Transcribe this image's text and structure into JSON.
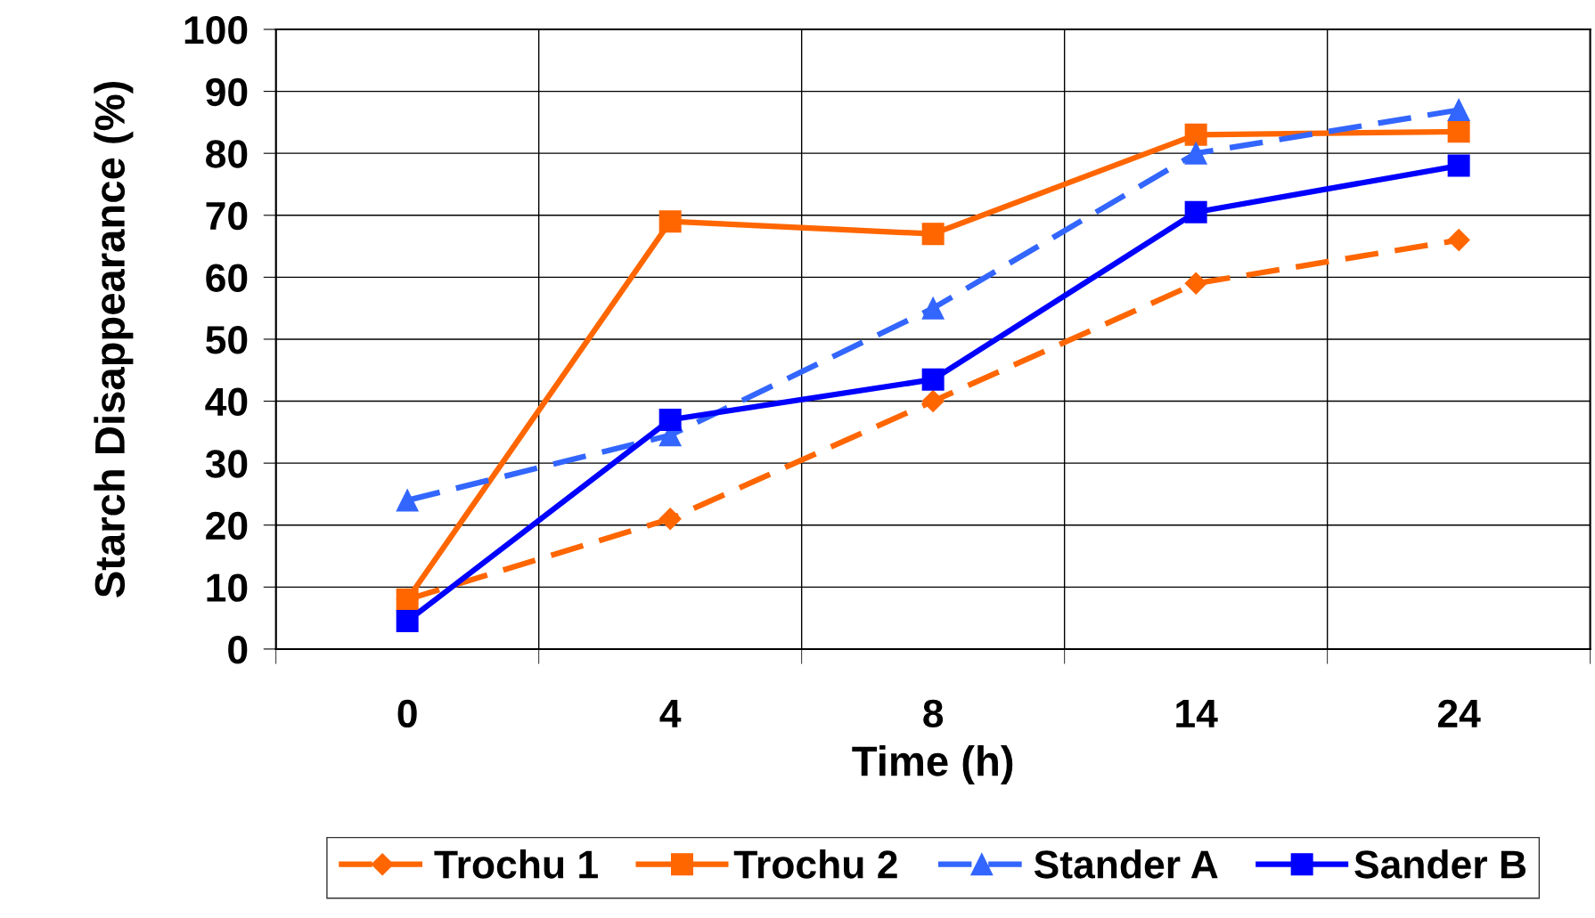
{
  "chart_data": {
    "type": "line",
    "xlabel": "Time (h)",
    "ylabel": "Starch Disappearance (%)",
    "categories": [
      "0",
      "4",
      "8",
      "14",
      "24"
    ],
    "series": [
      {
        "name": "Trochu 1",
        "color": "#ff6600",
        "marker": "diamond",
        "line_style": "dashed",
        "values": [
          8,
          21,
          40,
          59,
          66
        ]
      },
      {
        "name": "Trochu 2",
        "color": "#ff6600",
        "marker": "square",
        "line_style": "solid",
        "values": [
          8,
          69,
          67,
          83,
          83.5
        ]
      },
      {
        "name": "Stander A",
        "color": "#3366ff",
        "marker": "triangle",
        "line_style": "dashed",
        "values": [
          24,
          34.5,
          55,
          80,
          87
        ]
      },
      {
        "name": "Sander B",
        "color": "#0000ff",
        "marker": "square",
        "line_style": "solid",
        "values": [
          4.5,
          37,
          43.5,
          70.5,
          78
        ]
      }
    ],
    "ylim": [
      0,
      100
    ],
    "yticks": [
      0,
      10,
      20,
      30,
      40,
      50,
      60,
      70,
      80,
      90,
      100
    ],
    "grid": true,
    "legend": "bottom"
  }
}
